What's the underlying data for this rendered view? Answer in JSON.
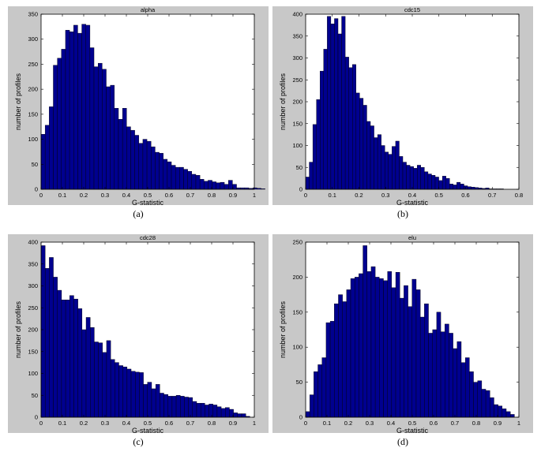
{
  "figure": {
    "captions": [
      "(a)",
      "(b)",
      "(c)",
      "(d)"
    ]
  },
  "colors": {
    "bar_fill": "#00008f",
    "bar_edge": "#000000",
    "panel_bg": "#c8c8c8",
    "axes_bg": "#ffffff"
  },
  "chart_data": [
    {
      "type": "bar",
      "title": "alpha",
      "xlabel": "G-statistic",
      "ylabel": "number of profiles",
      "xlim": [
        0,
        1
      ],
      "ylim": [
        0,
        350
      ],
      "xticks": [
        "0",
        "0.1",
        "0.2",
        "0.3",
        "0.4",
        "0.5",
        "0.6",
        "0.7",
        "0.8",
        "0.9",
        "1"
      ],
      "yticks": [
        "0",
        "50",
        "100",
        "150",
        "200",
        "250",
        "300",
        "350"
      ],
      "bin_start": 0,
      "bin_width": 0.0191,
      "values": [
        110,
        128,
        165,
        248,
        262,
        280,
        318,
        315,
        328,
        312,
        330,
        328,
        283,
        245,
        252,
        240,
        205,
        208,
        162,
        140,
        162,
        125,
        118,
        108,
        92,
        100,
        96,
        85,
        74,
        72,
        60,
        55,
        48,
        44,
        44,
        40,
        36,
        30,
        28,
        20,
        16,
        18,
        15,
        13,
        14,
        10,
        18,
        10,
        3,
        3,
        3,
        2,
        3,
        2,
        1
      ]
    },
    {
      "type": "bar",
      "title": "cdc15",
      "xlabel": "G-statistic",
      "ylabel": "number of profiles",
      "xlim": [
        0,
        0.8
      ],
      "ylim": [
        0,
        400
      ],
      "xticks": [
        "0",
        "0.1",
        "0.2",
        "0.3",
        "0.4",
        "0.5",
        "0.6",
        "0.7",
        "0.8"
      ],
      "yticks": [
        "0",
        "50",
        "100",
        "150",
        "200",
        "250",
        "300",
        "350",
        "400"
      ],
      "bin_start": 0,
      "bin_width": 0.0135,
      "values": [
        28,
        62,
        148,
        205,
        270,
        320,
        395,
        378,
        390,
        355,
        395,
        302,
        278,
        285,
        220,
        208,
        192,
        155,
        145,
        118,
        125,
        100,
        85,
        80,
        98,
        110,
        75,
        62,
        55,
        52,
        48,
        55,
        50,
        40,
        35,
        32,
        28,
        20,
        30,
        25,
        12,
        10,
        16,
        12,
        8,
        6,
        5,
        4,
        3,
        2,
        3,
        1,
        1,
        1,
        1
      ]
    },
    {
      "type": "bar",
      "title": "cdc28",
      "xlabel": "G-statistic",
      "ylabel": "number of profiles",
      "xlim": [
        0,
        1
      ],
      "ylim": [
        0,
        400
      ],
      "xticks": [
        "0",
        "0.1",
        "0.2",
        "0.3",
        "0.4",
        "0.5",
        "0.6",
        "0.7",
        "0.8",
        "0.9",
        "1"
      ],
      "yticks": [
        "0",
        "50",
        "100",
        "150",
        "200",
        "250",
        "300",
        "350",
        "400"
      ],
      "bin_start": 0,
      "bin_width": 0.0192,
      "values": [
        392,
        340,
        365,
        320,
        290,
        268,
        268,
        278,
        270,
        248,
        200,
        228,
        205,
        172,
        170,
        148,
        175,
        132,
        125,
        118,
        115,
        110,
        105,
        103,
        102,
        75,
        80,
        65,
        75,
        55,
        52,
        48,
        48,
        50,
        48,
        46,
        45,
        36,
        32,
        32,
        28,
        30,
        28,
        24,
        20,
        22,
        18,
        10,
        8,
        8,
        2
      ]
    },
    {
      "type": "bar",
      "title": "elu",
      "xlabel": "G-statistic",
      "ylabel": "number of profiles",
      "xlim": [
        0,
        1
      ],
      "ylim": [
        0,
        250
      ],
      "xticks": [
        "0",
        "0.1",
        "0.2",
        "0.3",
        "0.4",
        "0.5",
        "0.6",
        "0.7",
        "0.8",
        "0.9",
        "1"
      ],
      "yticks": [
        "0",
        "50",
        "100",
        "150",
        "200",
        "250"
      ],
      "bin_start": 0,
      "bin_width": 0.0192,
      "values": [
        8,
        32,
        65,
        75,
        85,
        135,
        137,
        162,
        175,
        165,
        182,
        198,
        200,
        205,
        245,
        208,
        215,
        200,
        198,
        195,
        208,
        185,
        207,
        170,
        188,
        158,
        197,
        182,
        143,
        162,
        120,
        125,
        150,
        122,
        133,
        120,
        98,
        108,
        78,
        85,
        65,
        50,
        52,
        40,
        38,
        28,
        18,
        16,
        12,
        8,
        4
      ]
    }
  ]
}
